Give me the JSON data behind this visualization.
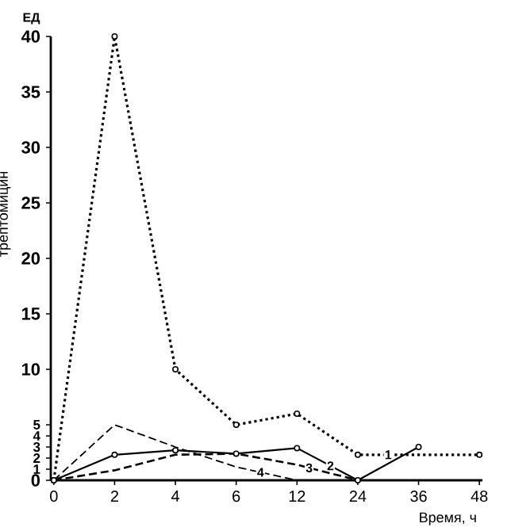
{
  "chart_data": {
    "type": "line",
    "ylabel": "трептомицин",
    "xlabel": "Время, ч",
    "annotations": [
      "ЕД"
    ],
    "categories": [
      "0",
      "2",
      "4",
      "6",
      "12",
      "24",
      "36",
      "48"
    ],
    "series": [
      {
        "name": "1",
        "color": "#000000",
        "line_style": "dotted",
        "marker": "circle",
        "values": [
          0,
          40,
          10,
          5,
          6,
          2.3,
          null,
          2.3
        ]
      },
      {
        "name": "2",
        "color": "#000000",
        "line_style": "solid",
        "marker": "circle",
        "values": [
          0,
          2.3,
          2.7,
          2.4,
          2.9,
          0,
          3,
          null
        ]
      },
      {
        "name": "3",
        "color": "#000000",
        "line_style": "dashed",
        "marker": "none",
        "values": [
          0,
          0.9,
          2.3,
          2.4,
          1.4,
          0,
          null,
          null
        ]
      },
      {
        "name": "4",
        "color": "#000000",
        "line_style": "dashed",
        "marker": "none",
        "values": [
          0,
          5,
          3,
          1.2,
          0,
          null,
          null,
          null
        ]
      }
    ],
    "ylim": [
      0,
      40
    ],
    "yticks": [
      0,
      1,
      2,
      3,
      4,
      5,
      10,
      15,
      20,
      25,
      30,
      35,
      40
    ],
    "grid": false,
    "legend": false
  }
}
